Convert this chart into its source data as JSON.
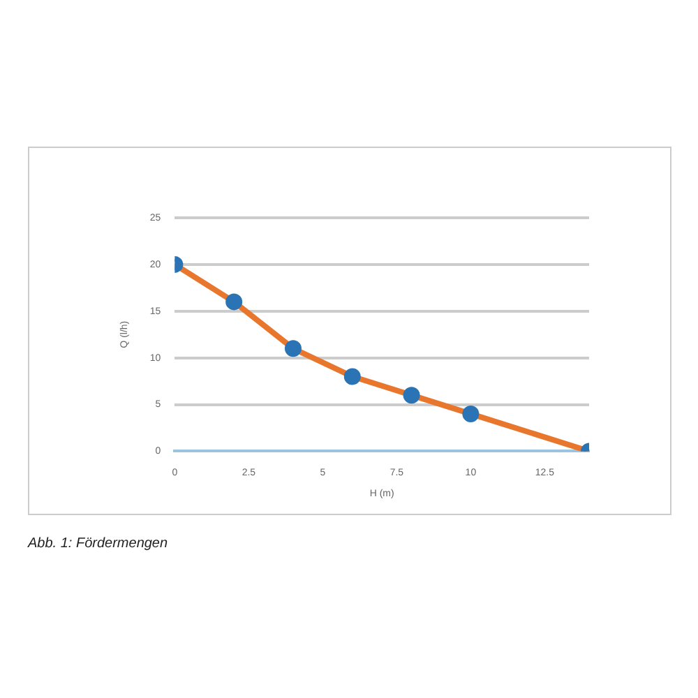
{
  "chart_data": {
    "type": "line",
    "xlabel": "H (m)",
    "ylabel": "Q (l/h)",
    "x": [
      0,
      2,
      4,
      6,
      8,
      10,
      14
    ],
    "series": [
      {
        "color": "#e8762d",
        "values": [
          20,
          16,
          11,
          8,
          6,
          4,
          0
        ]
      }
    ],
    "xlim": [
      0,
      14
    ],
    "xticks": [
      0,
      2.5,
      5,
      7.5,
      10,
      12.5
    ],
    "ylim": [
      0,
      25
    ],
    "yticks": [
      0,
      5,
      10,
      15,
      20,
      25
    ],
    "grid": "y",
    "legend": false,
    "marker": "circle",
    "line_style": "solid",
    "annotations": [
      "Abb. 1: Fördermengen"
    ]
  }
}
